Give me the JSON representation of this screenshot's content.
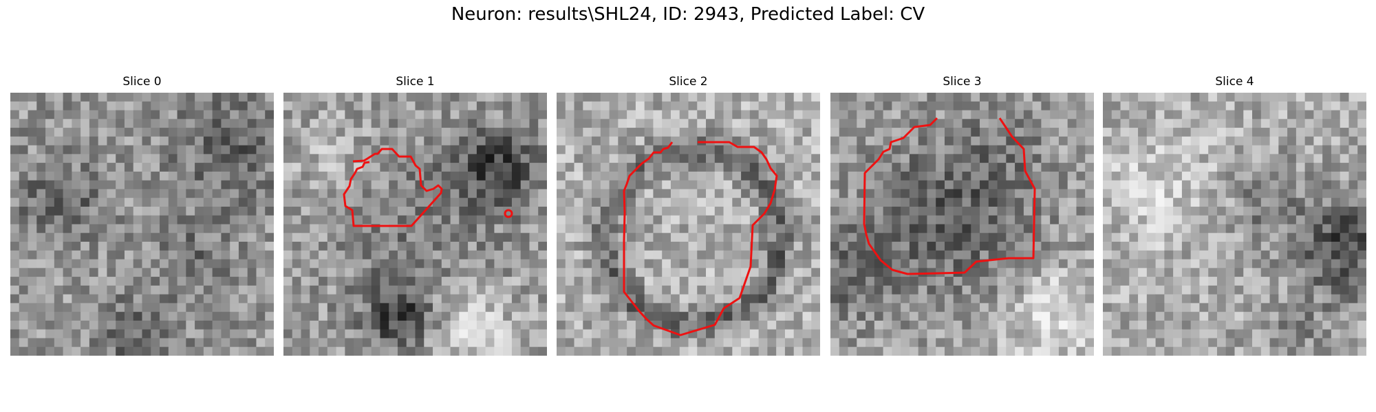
{
  "figure": {
    "title": "Neuron: results\\SHL24, ID: 2943, Predicted Label: CV"
  },
  "panels": [
    {
      "title": "Slice 0"
    },
    {
      "title": "Slice 1"
    },
    {
      "title": "Slice 2"
    },
    {
      "title": "Slice 3"
    },
    {
      "title": "Slice 4"
    }
  ],
  "colors": {
    "contour": "#ee1111",
    "colormap": "grayscale"
  }
}
